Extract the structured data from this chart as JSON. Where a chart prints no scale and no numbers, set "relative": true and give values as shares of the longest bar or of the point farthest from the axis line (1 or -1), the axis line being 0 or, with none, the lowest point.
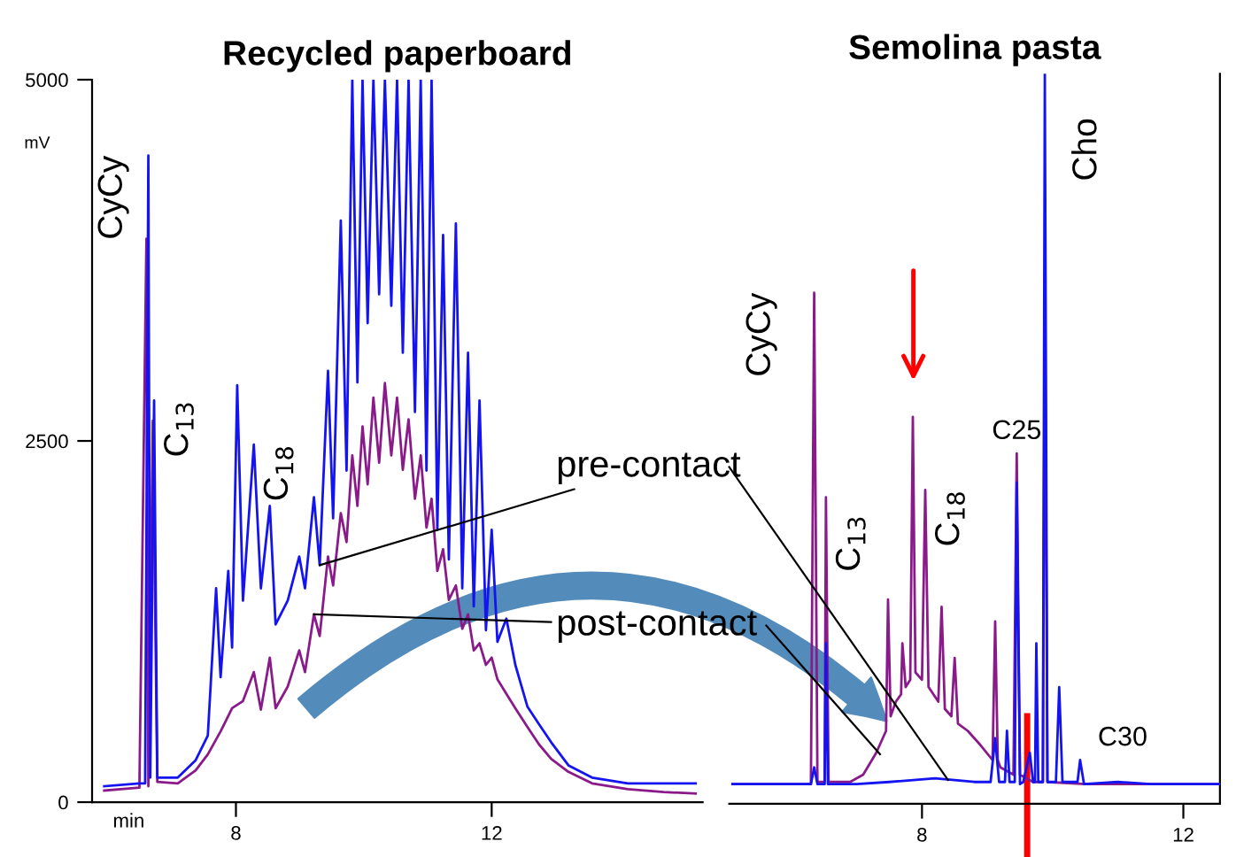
{
  "chart_data": [
    {
      "type": "line",
      "title": "Recycled paperboard",
      "xlabel": "min",
      "ylabel": "mV",
      "xlim": [
        5.75,
        15.3
      ],
      "xticks": [
        8,
        12
      ],
      "ylim": [
        0,
        5000
      ],
      "yticks": [
        0,
        2500,
        5000
      ],
      "series": [
        {
          "color": "#1414f0",
          "x": [
            5.94,
            6.49,
            6.58,
            6.63,
            6.66,
            6.72,
            6.77,
            7.09,
            7.37,
            7.56,
            7.69,
            7.76,
            7.88,
            7.94,
            8.02,
            8.11,
            8.28,
            8.39,
            8.53,
            8.62,
            8.81,
            8.99,
            9.08,
            9.22,
            9.31,
            9.44,
            9.52,
            9.64,
            9.73,
            9.82,
            9.9,
            9.98,
            10.06,
            10.15,
            10.24,
            10.33,
            10.43,
            10.52,
            10.61,
            10.7,
            10.8,
            10.89,
            10.98,
            11.06,
            11.15,
            11.24,
            11.33,
            11.44,
            11.54,
            11.63,
            11.72,
            11.81,
            11.91,
            12.0,
            12.09,
            12.23,
            12.37,
            12.56,
            12.74,
            12.93,
            13.2,
            13.57,
            14.13,
            14.69,
            15.19
          ],
          "values": [
            110,
            130,
            130,
            4475,
            170,
            2780,
            170,
            170,
            290,
            460,
            1480,
            865,
            1600,
            1070,
            2885,
            1395,
            2475,
            1480,
            2050,
            1230,
            1395,
            1700,
            1480,
            2110,
            1640,
            2985,
            1965,
            4025,
            2295,
            5000,
            2905,
            5000,
            3315,
            5000,
            3515,
            5000,
            3435,
            5000,
            3110,
            5000,
            2700,
            5000,
            2295,
            5000,
            1885,
            3925,
            1680,
            4005,
            1480,
            3110,
            1355,
            2780,
            1190,
            1885,
            1110,
            1270,
            950,
            660,
            540,
            415,
            255,
            170,
            130,
            130,
            130
          ]
        },
        {
          "color": "#8a1a8a",
          "x": [
            5.94,
            6.49,
            6.6,
            6.63,
            6.7,
            6.77,
            7.09,
            7.37,
            7.56,
            7.76,
            7.94,
            8.11,
            8.28,
            8.39,
            8.53,
            8.62,
            8.81,
            8.99,
            9.08,
            9.22,
            9.31,
            9.44,
            9.52,
            9.64,
            9.73,
            9.82,
            9.9,
            9.98,
            10.06,
            10.15,
            10.24,
            10.33,
            10.43,
            10.52,
            10.61,
            10.7,
            10.8,
            10.89,
            10.98,
            11.06,
            11.15,
            11.24,
            11.33,
            11.44,
            11.54,
            11.63,
            11.72,
            11.81,
            11.91,
            12.0,
            12.09,
            12.23,
            12.37,
            12.56,
            12.74,
            12.93,
            13.2,
            13.57,
            14.13,
            14.69,
            15.19
          ],
          "values": [
            80,
            100,
            3900,
            110,
            2640,
            140,
            130,
            220,
            330,
            490,
            650,
            700,
            900,
            640,
            1000,
            650,
            800,
            1050,
            900,
            1300,
            1150,
            1700,
            1500,
            2000,
            1800,
            2400,
            2050,
            2600,
            2200,
            2800,
            2350,
            2900,
            2400,
            2800,
            2300,
            2650,
            2100,
            2400,
            1900,
            2100,
            1600,
            1750,
            1400,
            1500,
            1200,
            1300,
            1050,
            1100,
            950,
            1000,
            850,
            750,
            650,
            520,
            400,
            300,
            210,
            130,
            90,
            70,
            60
          ]
        }
      ],
      "annotations": [
        {
          "text": "CyCy",
          "x": 6.63,
          "y": 4475
        },
        {
          "text": "C$_{13}$",
          "x": 6.72,
          "y": 2780
        },
        {
          "text": "C$_{18}$",
          "x": 8.28,
          "y": 2475
        },
        {
          "text": "pre-contact",
          "x": 9.31,
          "y": 1640
        },
        {
          "text": "post-contact",
          "x": 9.22,
          "y": 1300
        }
      ]
    },
    {
      "type": "line",
      "title": "Semolina pasta",
      "relative": true,
      "tick_labels": "x",
      "xlim": [
        5.05,
        12.56
      ],
      "xticks": [
        8,
        12
      ],
      "series": [
        {
          "color": "#1414f0",
          "x": [
            5.1,
            5.8,
            6.3,
            6.35,
            6.4,
            6.51,
            6.53,
            6.56,
            7.0,
            7.5,
            8.2,
            8.8,
            9.05,
            9.12,
            9.18,
            9.27,
            9.3,
            9.34,
            9.42,
            9.45,
            9.5,
            9.55,
            9.65,
            9.7,
            9.73,
            9.75,
            9.78,
            9.85,
            9.88,
            9.92,
            10.05,
            10.1,
            10.15,
            10.38,
            10.42,
            10.48,
            11.0,
            11.5,
            12.0,
            12.56
          ],
          "values": [
            0.027,
            0.027,
            0.027,
            0.05,
            0.027,
            0.027,
            0.22,
            0.027,
            0.027,
            0.03,
            0.035,
            0.03,
            0.03,
            0.09,
            0.03,
            0.03,
            0.1,
            0.03,
            0.03,
            0.44,
            0.027,
            0.03,
            0.07,
            0.03,
            0.03,
            0.22,
            0.03,
            0.03,
            1.0,
            0.03,
            0.03,
            0.16,
            0.03,
            0.03,
            0.06,
            0.027,
            0.03,
            0.027,
            0.027,
            0.027
          ]
        },
        {
          "color": "#8a1a8a",
          "x": [
            5.1,
            5.8,
            6.3,
            6.35,
            6.4,
            6.51,
            6.53,
            6.57,
            6.9,
            7.1,
            7.3,
            7.45,
            7.48,
            7.52,
            7.6,
            7.68,
            7.7,
            7.75,
            7.82,
            7.86,
            7.9,
            8.0,
            8.05,
            8.1,
            8.25,
            8.3,
            8.35,
            8.45,
            8.5,
            8.55,
            8.7,
            8.9,
            9.08,
            9.12,
            9.16,
            9.2,
            9.4,
            9.45,
            9.5,
            9.7,
            9.85,
            9.88,
            9.92,
            10.5,
            11.5,
            12.56
          ],
          "values": [
            0.027,
            0.027,
            0.027,
            0.7,
            0.03,
            0.03,
            0.42,
            0.03,
            0.03,
            0.04,
            0.07,
            0.1,
            0.28,
            0.12,
            0.14,
            0.15,
            0.22,
            0.16,
            0.17,
            0.53,
            0.18,
            0.17,
            0.43,
            0.16,
            0.14,
            0.27,
            0.13,
            0.12,
            0.2,
            0.11,
            0.1,
            0.08,
            0.06,
            0.25,
            0.06,
            0.05,
            0.04,
            0.48,
            0.04,
            0.03,
            0.03,
            0.71,
            0.03,
            0.027,
            0.027,
            0.027
          ]
        }
      ],
      "annotations": [
        {
          "text": "CyCy",
          "x": 6.35,
          "y": 0.7
        },
        {
          "text": "C$_{13}$",
          "x": 6.53,
          "y": 0.42
        },
        {
          "text": "C$_{18}$",
          "x": 8.05,
          "y": 0.43
        },
        {
          "text": "C25",
          "x": 9.45,
          "y": 0.48
        },
        {
          "text": "Cho",
          "x": 9.88,
          "y": 1.0
        },
        {
          "text": "C30",
          "x": 10.42,
          "y": 0.06
        }
      ],
      "ref_lines": [
        {
          "axis": "x",
          "value": 9.61,
          "color": "#ff0000"
        }
      ]
    }
  ]
}
